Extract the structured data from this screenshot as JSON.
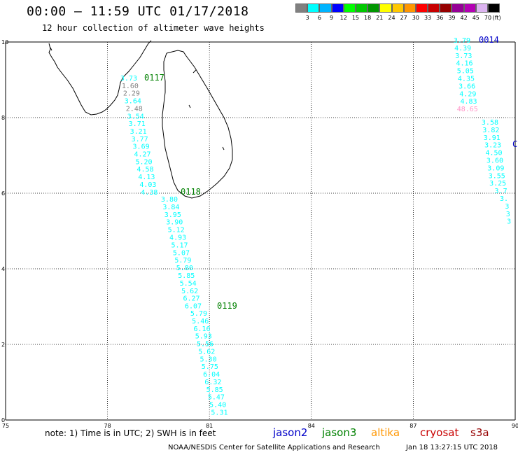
{
  "header": {
    "title": "00:00 — 11:59 UTC 01/17/2018",
    "subtitle": "12 hour collection of altimeter wave heights"
  },
  "colorbar": {
    "colors": [
      "#808080",
      "#00ffff",
      "#00b4ff",
      "#0000ff",
      "#00ff00",
      "#00c800",
      "#009600",
      "#ffff00",
      "#ffc800",
      "#ff9600",
      "#ff0000",
      "#c80000",
      "#960000",
      "#960096",
      "#b400b4",
      "#dcb4f0",
      "#000000"
    ],
    "labels": [
      "3",
      "6",
      "9",
      "12",
      "15",
      "18",
      "21",
      "24",
      "27",
      "30",
      "33",
      "36",
      "39",
      "42",
      "45",
      "70"
    ],
    "unit": "(ft)"
  },
  "axes": {
    "lon_ticks": [
      "75",
      "78",
      "81",
      "84",
      "87",
      "90"
    ],
    "lat_ticks": [
      "0",
      "2",
      "4",
      "6",
      "8",
      "10"
    ],
    "lon_range": [
      75,
      90
    ],
    "lat_range": [
      0,
      10
    ]
  },
  "tracks": [
    {
      "label": "0117",
      "label_color": "#008000",
      "points": [
        {
          "v": "3.73",
          "c": "#00ffff"
        },
        {
          "v": "1.60",
          "c": "#808080"
        },
        {
          "v": "2.29",
          "c": "#808080"
        },
        {
          "v": "3.64",
          "c": "#00ffff"
        },
        {
          "v": "2.48",
          "c": "#808080"
        },
        {
          "v": "3.54",
          "c": "#00ffff"
        },
        {
          "v": "3.71",
          "c": "#00ffff"
        },
        {
          "v": "3.21",
          "c": "#00ffff"
        },
        {
          "v": "3.77",
          "c": "#00ffff"
        },
        {
          "v": "3.69",
          "c": "#00ffff"
        },
        {
          "v": "4.27",
          "c": "#00ffff"
        },
        {
          "v": "5.20",
          "c": "#00ffff"
        },
        {
          "v": "4.58",
          "c": "#00ffff"
        },
        {
          "v": "4.13",
          "c": "#00ffff"
        },
        {
          "v": "4.03",
          "c": "#00ffff"
        },
        {
          "v": "4.38",
          "c": "#00ffff"
        }
      ]
    },
    {
      "label": "0118",
      "label_color": "#008000",
      "points": [
        {
          "v": "3.80",
          "c": "#00ffff"
        },
        {
          "v": "3.84",
          "c": "#00ffff"
        },
        {
          "v": "3.95",
          "c": "#00ffff"
        },
        {
          "v": "3.90",
          "c": "#00ffff"
        },
        {
          "v": "5.12",
          "c": "#00ffff"
        },
        {
          "v": "4.93",
          "c": "#00ffff"
        },
        {
          "v": "5.17",
          "c": "#00ffff"
        },
        {
          "v": "5.07",
          "c": "#00ffff"
        },
        {
          "v": "5.79",
          "c": "#00ffff"
        },
        {
          "v": "5.80",
          "c": "#00ffff"
        },
        {
          "v": "5.85",
          "c": "#00ffff"
        },
        {
          "v": "5.54",
          "c": "#00ffff"
        },
        {
          "v": "5.62",
          "c": "#00ffff"
        },
        {
          "v": "6.27",
          "c": "#00ffff"
        },
        {
          "v": "6.07",
          "c": "#00ffff"
        }
      ]
    },
    {
      "label": "0119",
      "label_color": "#008000",
      "points": [
        {
          "v": "5.79",
          "c": "#00ffff"
        },
        {
          "v": "5.46",
          "c": "#00ffff"
        },
        {
          "v": "6.16",
          "c": "#00ffff"
        },
        {
          "v": "5.93",
          "c": "#00ffff"
        },
        {
          "v": "5.56",
          "c": "#00ffff"
        },
        {
          "v": "5.62",
          "c": "#00ffff"
        },
        {
          "v": "5.30",
          "c": "#00ffff"
        },
        {
          "v": "5.75",
          "c": "#00ffff"
        },
        {
          "v": "6.04",
          "c": "#00ffff"
        },
        {
          "v": "6.32",
          "c": "#00ffff"
        },
        {
          "v": "5.85",
          "c": "#00ffff"
        },
        {
          "v": "5.47",
          "c": "#00ffff"
        },
        {
          "v": "5.40",
          "c": "#00ffff"
        },
        {
          "v": "5.31",
          "c": "#00ffff"
        }
      ]
    },
    {
      "label": "0014",
      "label_color": "#0000c8",
      "points": [
        {
          "v": "3.79",
          "c": "#00ffff"
        },
        {
          "v": "4.39",
          "c": "#00ffff"
        },
        {
          "v": "3.73",
          "c": "#00ffff"
        },
        {
          "v": "4.16",
          "c": "#00ffff"
        },
        {
          "v": "5.05",
          "c": "#00ffff"
        },
        {
          "v": "4.35",
          "c": "#00ffff"
        },
        {
          "v": "3.66",
          "c": "#00ffff"
        },
        {
          "v": "4.29",
          "c": "#00ffff"
        },
        {
          "v": "4.83",
          "c": "#00ffff"
        },
        {
          "v": "48.65",
          "c": "#ff96c8"
        }
      ]
    },
    {
      "label": "C",
      "label_color": "#0000c8",
      "points": [
        {
          "v": "3.58",
          "c": "#00ffff"
        },
        {
          "v": "3.82",
          "c": "#00ffff"
        },
        {
          "v": "3.91",
          "c": "#00ffff"
        },
        {
          "v": "3.23",
          "c": "#00ffff"
        },
        {
          "v": "4.50",
          "c": "#00ffff"
        },
        {
          "v": "3.60",
          "c": "#00ffff"
        },
        {
          "v": "3.09",
          "c": "#00ffff"
        },
        {
          "v": "3.55",
          "c": "#00ffff"
        },
        {
          "v": "3.25",
          "c": "#00ffff"
        },
        {
          "v": "3.7",
          "c": "#00ffff"
        },
        {
          "v": "3.",
          "c": "#00ffff"
        },
        {
          "v": "3",
          "c": "#00ffff"
        },
        {
          "v": "3",
          "c": "#00ffff"
        },
        {
          "v": "3",
          "c": "#00ffff"
        }
      ]
    }
  ],
  "footer": {
    "note": "note:  1) Time is in UTC;  2) SWH is in feet",
    "legend": [
      {
        "name": "jason2",
        "color": "#0000c8"
      },
      {
        "name": "jason3",
        "color": "#008000"
      },
      {
        "name": "altika",
        "color": "#ff9600"
      },
      {
        "name": "cryosat",
        "color": "#c80000"
      },
      {
        "name": "s3a",
        "color": "#960000"
      }
    ],
    "credit_left": "NOAA/NESDIS Center for Satellite Applications and Research",
    "credit_right": "Jan 18 13:27:15 UTC 2018"
  }
}
